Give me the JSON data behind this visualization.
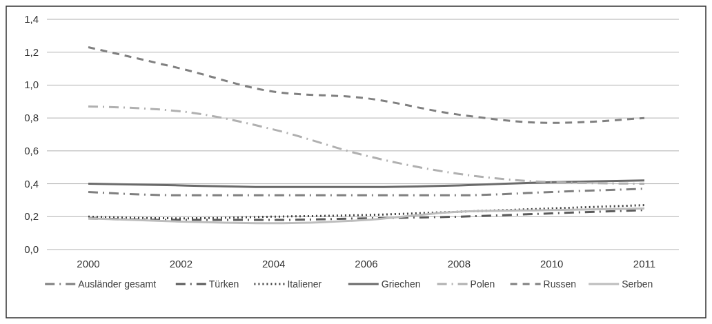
{
  "chart_data": {
    "type": "line",
    "categories": [
      "2000",
      "2002",
      "2004",
      "2006",
      "2008",
      "2010",
      "2011"
    ],
    "ylim": [
      0,
      1.4
    ],
    "yticks": [
      {
        "value": 0,
        "label": "0,0"
      },
      {
        "value": 0.2,
        "label": "0,2"
      },
      {
        "value": 0.4,
        "label": "0,4"
      },
      {
        "value": 0.6,
        "label": "0,6"
      },
      {
        "value": 0.8,
        "label": "0,8"
      },
      {
        "value": 1.0,
        "label": "1,0"
      },
      {
        "value": 1.2,
        "label": "1,2"
      },
      {
        "value": 1.4,
        "label": "1,4"
      }
    ],
    "grid": "y",
    "legend": "bottom",
    "marker": "none",
    "series": [
      {
        "name": "Ausländer gesamt",
        "color": "#7f7f7f",
        "line_style": "dashdot",
        "values": [
          0.35,
          0.33,
          0.33,
          0.33,
          0.33,
          0.35,
          0.37
        ]
      },
      {
        "name": "Türken",
        "color": "#5a5a5a",
        "line_style": "dashdot",
        "values": [
          0.19,
          0.18,
          0.18,
          0.19,
          0.2,
          0.22,
          0.24
        ]
      },
      {
        "name": "Italiener",
        "color": "#404040",
        "line_style": "dotted",
        "values": [
          0.2,
          0.19,
          0.2,
          0.21,
          0.23,
          0.25,
          0.27
        ]
      },
      {
        "name": "Griechen",
        "color": "#6a6a6a",
        "line_style": "solid",
        "values": [
          0.4,
          0.39,
          0.38,
          0.38,
          0.39,
          0.41,
          0.42
        ]
      },
      {
        "name": "Polen",
        "color": "#b0b0b0",
        "line_style": "dashdot",
        "values": [
          0.87,
          0.84,
          0.73,
          0.57,
          0.46,
          0.41,
          0.4
        ]
      },
      {
        "name": "Russen",
        "color": "#808080",
        "line_style": "dashed",
        "values": [
          1.23,
          1.1,
          0.96,
          0.92,
          0.82,
          0.77,
          0.8
        ]
      },
      {
        "name": "Serben",
        "color": "#bdbdbd",
        "line_style": "solid",
        "values": [
          0.19,
          0.17,
          0.16,
          0.18,
          0.23,
          0.24,
          0.25
        ]
      }
    ]
  }
}
